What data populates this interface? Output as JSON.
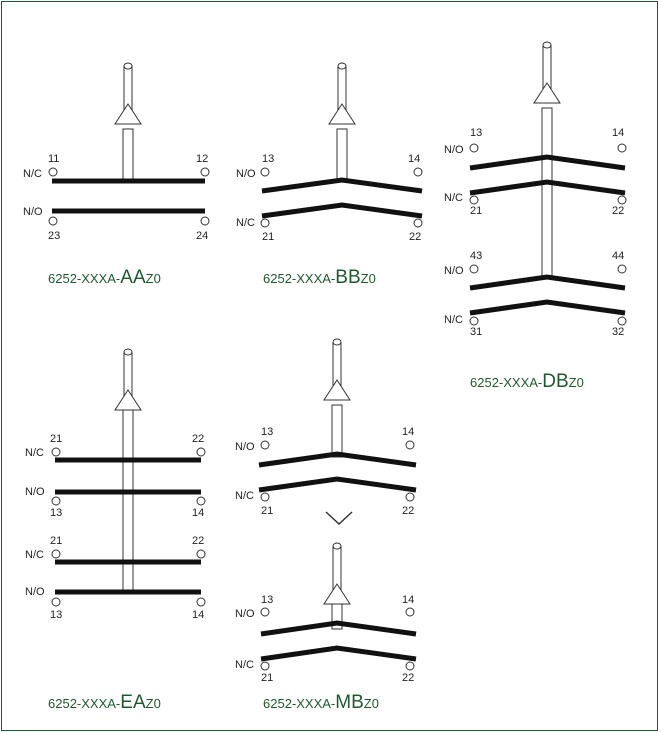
{
  "colors": {
    "border": "#1e5a2e",
    "title": "#1e5a2e",
    "bar": "#111111",
    "outline": "#333333"
  },
  "icons": {
    "contact": "open-circle",
    "actuator": "plunger-with-triangle",
    "transition": "chevron-down-icon"
  },
  "AA": {
    "title": {
      "prefix": "6252-XXXA-",
      "big": "AA",
      "suffix": "Z0"
    },
    "row1": {
      "type": "N/C",
      "left": "11",
      "right": "12"
    },
    "row2": {
      "type": "N/O",
      "left": "23",
      "right": "24"
    }
  },
  "BB": {
    "title": {
      "prefix": "6252-XXXA-",
      "big": "BB",
      "suffix": "Z0"
    },
    "row1": {
      "type": "N/O",
      "left": "13",
      "right": "14"
    },
    "row2": {
      "type": "N/C",
      "left": "21",
      "right": "22"
    }
  },
  "DB": {
    "title": {
      "prefix": "6252-XXXA-",
      "big": "DB",
      "suffix": "Z0"
    },
    "row1": {
      "type": "N/O",
      "left": "13",
      "right": "14"
    },
    "row2": {
      "type": "N/C",
      "left": "21",
      "right": "22"
    },
    "row3": {
      "type": "N/O",
      "left": "43",
      "right": "44"
    },
    "row4": {
      "type": "N/C",
      "left": "31",
      "right": "32"
    }
  },
  "EA": {
    "title": {
      "prefix": "6252-XXXA-",
      "big": "EA",
      "suffix": "Z0"
    },
    "row1": {
      "type": "N/C",
      "left": "21",
      "right": "22"
    },
    "row2": {
      "type": "N/O",
      "left": "13",
      "right": "14"
    },
    "row3": {
      "type": "N/C",
      "left": "21",
      "right": "22"
    },
    "row4": {
      "type": "N/O",
      "left": "13",
      "right": "14"
    }
  },
  "MB": {
    "title": {
      "prefix": "6252-XXXA-",
      "big": "MB",
      "suffix": "Z0"
    },
    "upper": {
      "row1": {
        "type": "N/O",
        "left": "13",
        "right": "14"
      },
      "row2": {
        "type": "N/C",
        "left": "21",
        "right": "22"
      }
    },
    "lower": {
      "row1": {
        "type": "N/O",
        "left": "13",
        "right": "14"
      },
      "row2": {
        "type": "N/C",
        "left": "21",
        "right": "22"
      }
    }
  }
}
